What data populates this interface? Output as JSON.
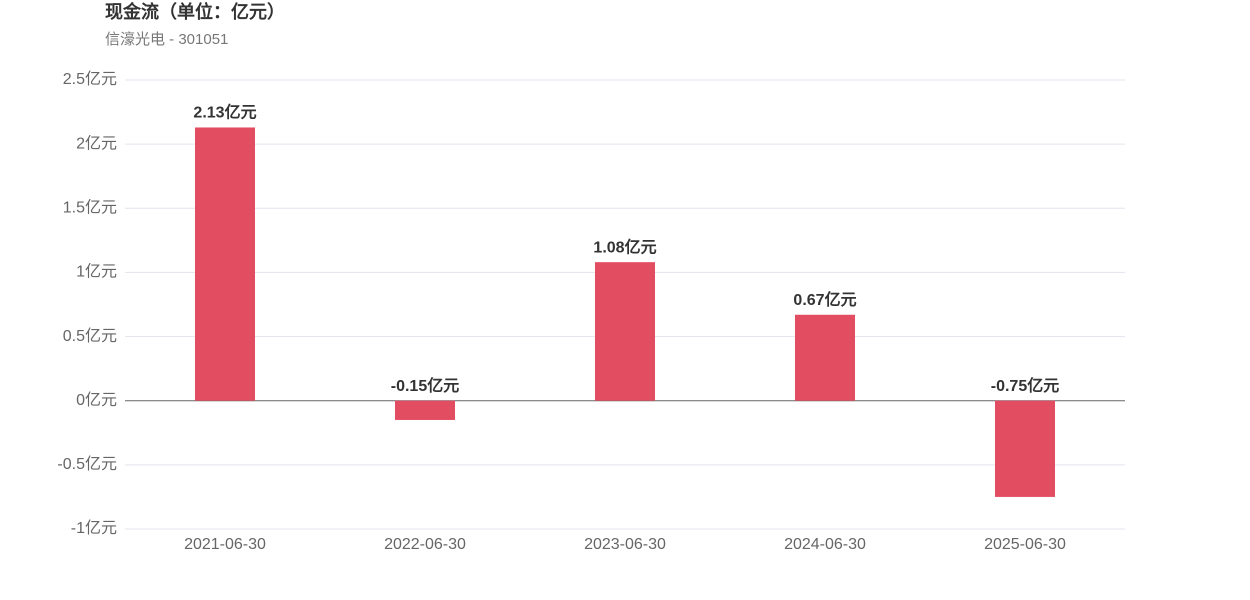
{
  "chart_data": {
    "type": "bar",
    "title": "现金流（单位：亿元）",
    "subtitle": "信濠光电 - 301051",
    "categories": [
      "2021-06-30",
      "2022-06-30",
      "2023-06-30",
      "2024-06-30",
      "2025-06-30"
    ],
    "values": [
      2.13,
      -0.15,
      1.08,
      0.67,
      -0.75
    ],
    "value_labels": [
      "2.13亿元",
      "-0.15亿元",
      "1.08亿元",
      "0.67亿元",
      "-0.75亿元"
    ],
    "color": "#e34d61",
    "ylim": [
      -1,
      2.5
    ],
    "yticks": [
      {
        "value": -1,
        "label": "-1亿元"
      },
      {
        "value": -0.5,
        "label": "-0.5亿元"
      },
      {
        "value": 0,
        "label": "0亿元"
      },
      {
        "value": 0.5,
        "label": "0.5亿元"
      },
      {
        "value": 1,
        "label": "1亿元"
      },
      {
        "value": 1.5,
        "label": "1.5亿元"
      },
      {
        "value": 2,
        "label": "2亿元"
      },
      {
        "value": 2.5,
        "label": "2.5亿元"
      }
    ],
    "grid": true
  }
}
